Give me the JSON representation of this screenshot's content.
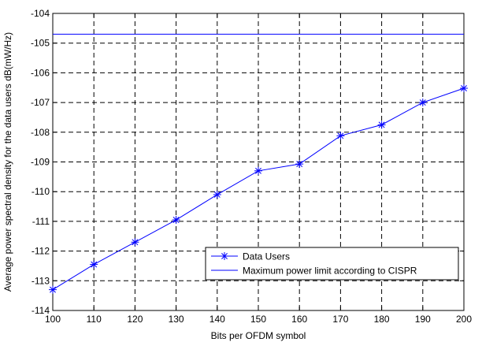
{
  "chart_data": {
    "type": "line",
    "title": "",
    "xlabel": "Bits per OFDM symbol",
    "ylabel": "Average power spectral density for the data users dB(mW/Hz)",
    "xlim": [
      100,
      200
    ],
    "ylim": [
      -114,
      -104
    ],
    "xticks": [
      100,
      110,
      120,
      130,
      140,
      150,
      160,
      170,
      180,
      190,
      200
    ],
    "yticks": [
      -114,
      -113,
      -112,
      -111,
      -110,
      -109,
      -108,
      -107,
      -106,
      -105,
      -104
    ],
    "grid": true,
    "legend_position": "bottom-right",
    "series": [
      {
        "name": "Data Users",
        "marker": "asterisk",
        "color": "#0000ff",
        "x": [
          100,
          110,
          120,
          130,
          140,
          150,
          160,
          170,
          180,
          190,
          200
        ],
        "y": [
          -113.3,
          -112.45,
          -111.7,
          -110.95,
          -110.1,
          -109.3,
          -109.07,
          -108.12,
          -107.75,
          -107.0,
          -106.52
        ]
      },
      {
        "name": "Maximum power limit according to CISPR",
        "marker": "none",
        "color": "#0000ff",
        "x": [
          100,
          200
        ],
        "y": [
          -104.7,
          -104.7
        ]
      }
    ]
  }
}
